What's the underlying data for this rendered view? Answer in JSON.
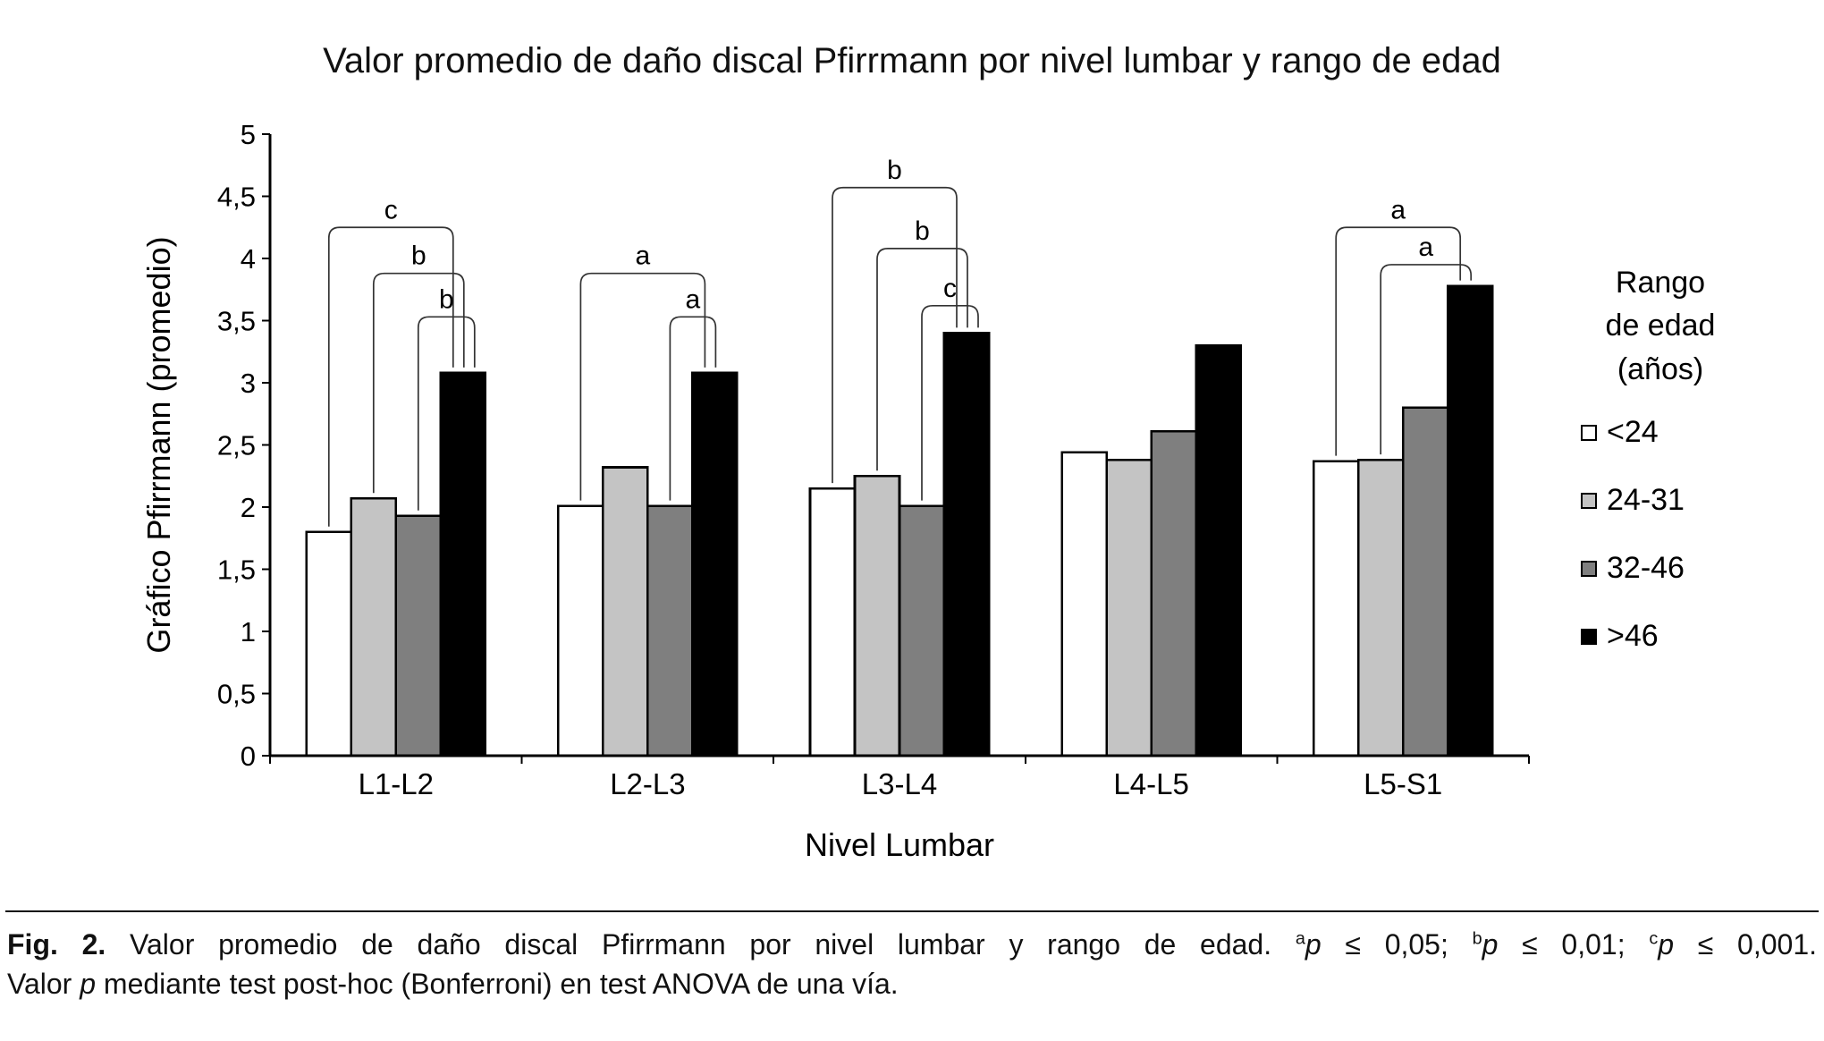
{
  "page": {
    "title": "Valor promedio de daño discal Pfirrmann por nivel lumbar y rango de edad"
  },
  "chart_data": {
    "type": "bar",
    "title": "Valor promedio de daño discal Pfirrmann por nivel lumbar y rango de edad",
    "xlabel": "Nivel Lumbar",
    "ylabel": "Gráfico Pfirrmann (promedio)",
    "ylim": [
      0,
      5
    ],
    "ytick_step": 0.5,
    "ytick_labels": [
      "0",
      "0,5",
      "1",
      "1,5",
      "2",
      "2,5",
      "3",
      "3,5",
      "4",
      "4,5",
      "5"
    ],
    "grid": false,
    "legend_position": "right",
    "legend_title_lines": [
      "Rango",
      "de edad",
      "(años)"
    ],
    "categories": [
      "L1-L2",
      "L2-L3",
      "L3-L4",
      "L4-L5",
      "L5-S1"
    ],
    "series": [
      {
        "name": "<24",
        "color": "#ffffff",
        "values": [
          1.8,
          2.01,
          2.15,
          2.44,
          2.37
        ]
      },
      {
        "name": "24-31",
        "color": "#c4c4c4",
        "values": [
          2.07,
          2.32,
          2.25,
          2.38,
          2.38
        ]
      },
      {
        "name": "32-46",
        "color": "#7f7f7f",
        "values": [
          1.93,
          2.01,
          2.01,
          2.61,
          2.8
        ]
      },
      {
        "name": ">46",
        "color": "#000000",
        "values": [
          3.08,
          3.08,
          3.4,
          3.3,
          3.78
        ]
      }
    ],
    "brackets": [
      {
        "group": 0,
        "from": 0,
        "to": 3,
        "y": 4.25,
        "label": "c"
      },
      {
        "group": 0,
        "from": 1,
        "to": 3,
        "y": 3.88,
        "label": "b"
      },
      {
        "group": 0,
        "from": 2,
        "to": 3,
        "y": 3.53,
        "label": "b"
      },
      {
        "group": 1,
        "from": 0,
        "to": 3,
        "y": 3.88,
        "label": "a"
      },
      {
        "group": 1,
        "from": 2,
        "to": 3,
        "y": 3.53,
        "label": "a"
      },
      {
        "group": 2,
        "from": 0,
        "to": 3,
        "y": 4.57,
        "label": "b"
      },
      {
        "group": 2,
        "from": 1,
        "to": 3,
        "y": 4.08,
        "label": "b"
      },
      {
        "group": 2,
        "from": 2,
        "to": 3,
        "y": 3.62,
        "label": "c"
      },
      {
        "group": 4,
        "from": 0,
        "to": 3,
        "y": 4.25,
        "label": "a"
      },
      {
        "group": 4,
        "from": 1,
        "to": 3,
        "y": 3.95,
        "label": "a"
      }
    ]
  },
  "caption": {
    "line1": [
      {
        "t": "Fig. 2.",
        "b": true
      },
      {
        "t": " Valor promedio de daño discal Pfirrmann por nivel lumbar y rango de edad. "
      },
      {
        "t": "a",
        "sup": true
      },
      {
        "t": "p",
        "i": true
      },
      {
        "t": " ≤ 0,05; "
      },
      {
        "t": "b",
        "sup": true
      },
      {
        "t": "p",
        "i": true
      },
      {
        "t": " ≤ 0,01; "
      },
      {
        "t": "c",
        "sup": true
      },
      {
        "t": "p",
        "i": true
      },
      {
        "t": " ≤ 0,001."
      }
    ],
    "line2": [
      {
        "t": "Valor "
      },
      {
        "t": "p",
        "i": true
      },
      {
        "t": " mediante test post-hoc (Bonferroni) en test ANOVA de una vía."
      }
    ]
  }
}
